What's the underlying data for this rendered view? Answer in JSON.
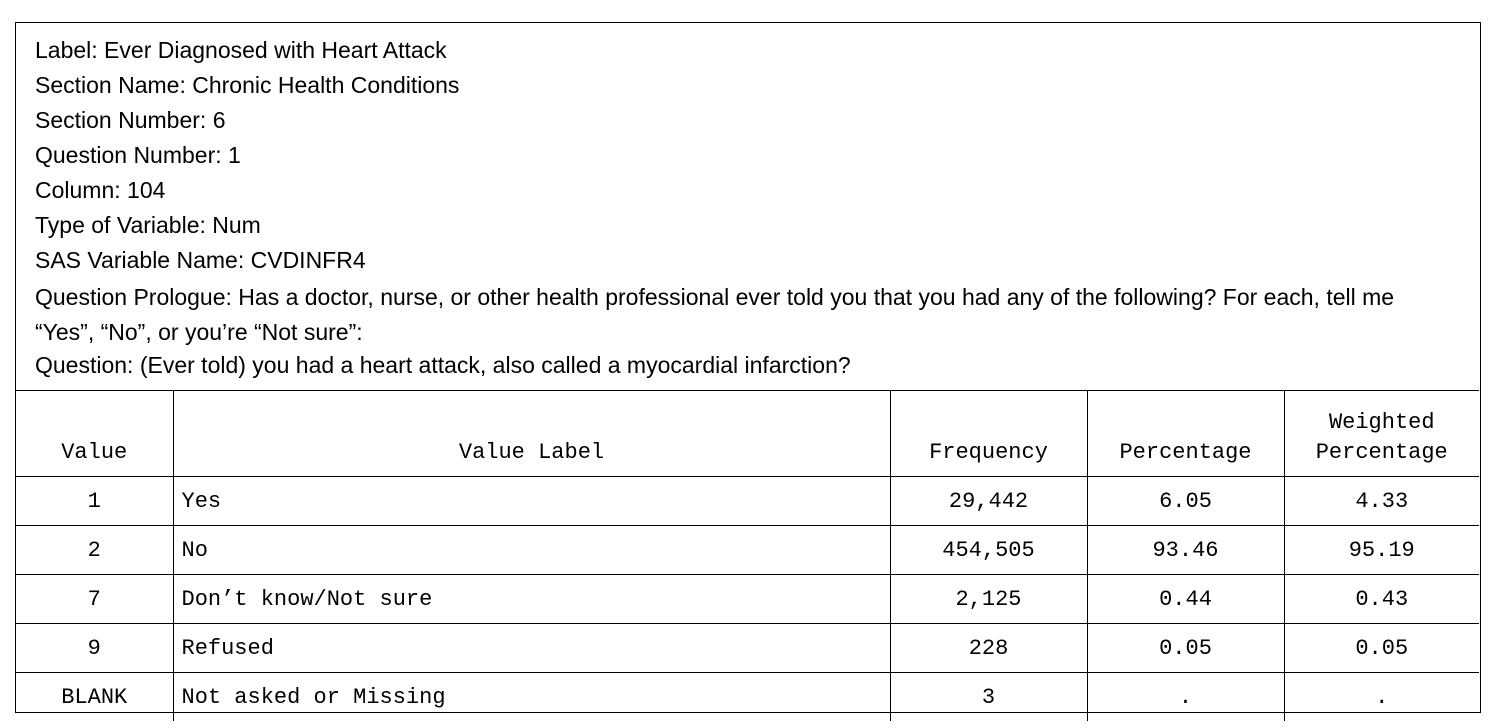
{
  "info": {
    "label": "Label: Ever Diagnosed with Heart Attack",
    "section_name": "Section Name: Chronic Health Conditions",
    "section_number": "Section Number: 6",
    "question_number": "Question Number: 1",
    "column": "Column: 104",
    "type_of_variable": "Type of Variable: Num",
    "sas_variable_name": "SAS Variable Name: CVDINFR4",
    "question_prologue": "Question Prologue: Has a doctor, nurse, or other health professional ever told you that you had any of the following? For each, tell me “Yes”, “No”, or you’re “Not sure”:",
    "question": "Question:  (Ever told) you had a heart attack, also called a myocardial infarction?"
  },
  "table": {
    "headers": {
      "value": "Value",
      "value_label": "Value Label",
      "frequency": "Frequency",
      "percentage": "Percentage",
      "weighted_line1": "Weighted",
      "weighted_line2": "Percentage"
    },
    "rows": [
      {
        "value": "1",
        "label": "Yes",
        "frequency": "29,442",
        "percentage": "6.05",
        "weighted": "4.33"
      },
      {
        "value": "2",
        "label": "No",
        "frequency": "454,505",
        "percentage": "93.46",
        "weighted": "95.19"
      },
      {
        "value": "7",
        "label": "Don’t know/Not sure",
        "frequency": "2,125",
        "percentage": "0.44",
        "weighted": "0.43"
      },
      {
        "value": "9",
        "label": "Refused",
        "frequency": "228",
        "percentage": "0.05",
        "weighted": "0.05"
      },
      {
        "value": "BLANK",
        "label": "Not asked or Missing",
        "frequency": "3",
        "percentage": ".",
        "weighted": "."
      }
    ]
  }
}
